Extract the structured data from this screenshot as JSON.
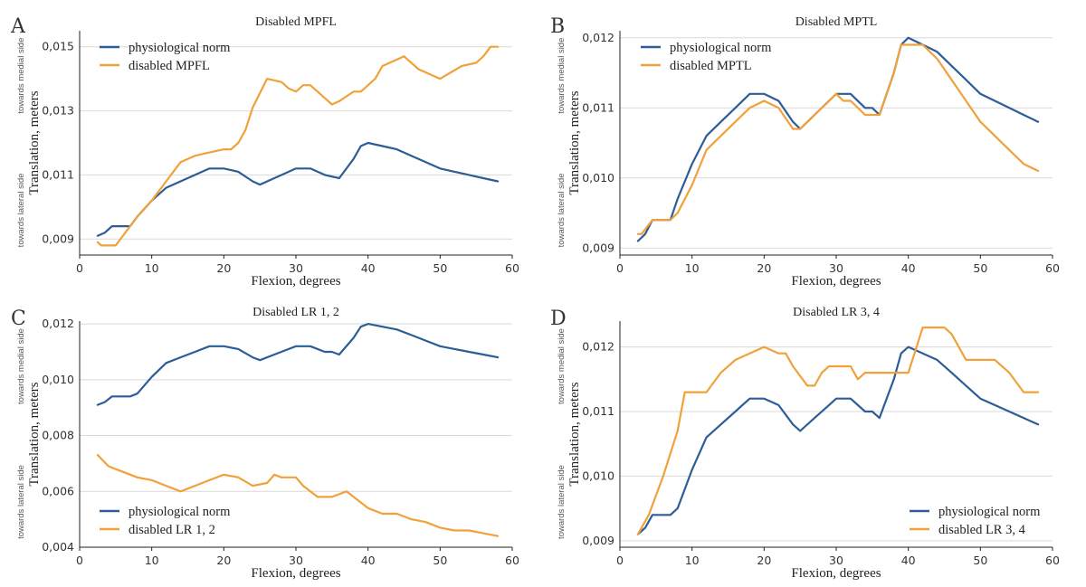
{
  "figure": {
    "x_label": "Flexion, degrees",
    "y_label": "Translation, meters",
    "side_upper": "towards medial side",
    "side_lower": "towards lateral side"
  },
  "colors": {
    "norm": "#2c5d96",
    "disabled": "#f0a13a"
  },
  "chart_data": [
    {
      "letter": "A",
      "type": "line",
      "title": "Disabled MPFL",
      "xlabel": "Flexion, degrees",
      "ylabel": "Translation, meters",
      "xlim": [
        0,
        60
      ],
      "ylim": [
        0.0085,
        0.0155
      ],
      "xticks": [
        0,
        10,
        20,
        30,
        40,
        50,
        60
      ],
      "yticks": [
        0.009,
        0.011,
        0.013,
        0.015
      ],
      "ytick_labels": [
        "0,009",
        "0,011",
        "0,013",
        "0,015"
      ],
      "grid": true,
      "legend_position": "top-left",
      "series": [
        {
          "name": "physiological norm",
          "color": "#2c5d96",
          "x": [
            2.5,
            3.5,
            4.5,
            6,
            7,
            8,
            10,
            12,
            14,
            16,
            18,
            20,
            22,
            24,
            25,
            27,
            29,
            30,
            31,
            32,
            34,
            36,
            38,
            39,
            40,
            42,
            44,
            46,
            48,
            50,
            52,
            54,
            56,
            58
          ],
          "y": [
            0.0091,
            0.0092,
            0.0094,
            0.0094,
            0.0094,
            0.0097,
            0.0102,
            0.0106,
            0.0108,
            0.011,
            0.0112,
            0.0112,
            0.0111,
            0.0108,
            0.0107,
            0.0109,
            0.0111,
            0.0112,
            0.0112,
            0.0112,
            0.011,
            0.0109,
            0.0115,
            0.0119,
            0.012,
            0.0119,
            0.0118,
            0.0116,
            0.0114,
            0.0112,
            0.0111,
            0.011,
            0.0109,
            0.0108
          ]
        },
        {
          "name": "disabled MPFL",
          "color": "#f0a13a",
          "x": [
            2.5,
            3,
            5,
            7,
            8,
            10,
            12,
            14,
            16,
            18,
            20,
            21,
            22,
            23,
            24,
            26,
            28,
            29,
            30,
            31,
            32,
            34,
            35,
            36,
            38,
            39,
            40,
            41,
            42,
            44,
            45,
            47,
            50,
            53,
            55,
            56,
            57,
            58
          ],
          "y": [
            0.0089,
            0.0088,
            0.0088,
            0.0094,
            0.0097,
            0.0102,
            0.0108,
            0.0114,
            0.0116,
            0.0117,
            0.0118,
            0.0118,
            0.012,
            0.0124,
            0.0131,
            0.014,
            0.0139,
            0.0137,
            0.0136,
            0.0138,
            0.0138,
            0.0134,
            0.0132,
            0.0133,
            0.0136,
            0.0136,
            0.0138,
            0.014,
            0.0144,
            0.0146,
            0.0147,
            0.0143,
            0.014,
            0.0144,
            0.0145,
            0.0147,
            0.015,
            0.015
          ]
        }
      ]
    },
    {
      "letter": "B",
      "type": "line",
      "title": "Disabled MPTL",
      "xlabel": "Flexion, degrees",
      "ylabel": "Translation, meters",
      "xlim": [
        0,
        60
      ],
      "ylim": [
        0.0089,
        0.0121
      ],
      "xticks": [
        0,
        10,
        20,
        30,
        40,
        50,
        60
      ],
      "yticks": [
        0.009,
        0.01,
        0.011,
        0.012
      ],
      "ytick_labels": [
        "0,009",
        "0,010",
        "0,011",
        "0,012"
      ],
      "grid": true,
      "legend_position": "top-left",
      "series": [
        {
          "name": "physiological norm",
          "color": "#2c5d96",
          "x": [
            2.5,
            3.5,
            4.5,
            6,
            7,
            8,
            10,
            12,
            14,
            16,
            18,
            20,
            22,
            24,
            25,
            27,
            29,
            30,
            31,
            32,
            34,
            35,
            36,
            38,
            39,
            40,
            42,
            44,
            46,
            48,
            50,
            52,
            54,
            56,
            58
          ],
          "y": [
            0.0091,
            0.0092,
            0.0094,
            0.0094,
            0.0094,
            0.0097,
            0.0102,
            0.0106,
            0.0108,
            0.011,
            0.0112,
            0.0112,
            0.0111,
            0.0108,
            0.0107,
            0.0109,
            0.0111,
            0.0112,
            0.0112,
            0.0112,
            0.011,
            0.011,
            0.0109,
            0.0115,
            0.0119,
            0.012,
            0.0119,
            0.0118,
            0.0116,
            0.0114,
            0.0112,
            0.0111,
            0.011,
            0.0109,
            0.0108
          ]
        },
        {
          "name": "disabled MPTL",
          "color": "#f0a13a",
          "x": [
            2.5,
            3,
            4.5,
            6,
            7,
            8,
            10,
            12,
            14,
            16,
            18,
            20,
            22,
            24,
            25,
            27,
            29,
            30,
            31,
            32,
            34,
            35,
            36,
            38,
            39,
            40,
            42,
            44,
            46,
            48,
            50,
            52,
            54,
            56,
            58
          ],
          "y": [
            0.0092,
            0.0092,
            0.0094,
            0.0094,
            0.0094,
            0.0095,
            0.0099,
            0.0104,
            0.0106,
            0.0108,
            0.011,
            0.0111,
            0.011,
            0.0107,
            0.0107,
            0.0109,
            0.0111,
            0.0112,
            0.0111,
            0.0111,
            0.0109,
            0.0109,
            0.0109,
            0.0115,
            0.0119,
            0.0119,
            0.0119,
            0.0117,
            0.0114,
            0.0111,
            0.0108,
            0.0106,
            0.0104,
            0.0102,
            0.0101
          ]
        }
      ]
    },
    {
      "letter": "C",
      "type": "line",
      "title": "Disabled LR 1, 2",
      "xlabel": "Flexion, degrees",
      "ylabel": "Translation, meters",
      "xlim": [
        0,
        60
      ],
      "ylim": [
        0.004,
        0.0121
      ],
      "xticks": [
        0,
        10,
        20,
        30,
        40,
        50,
        60
      ],
      "yticks": [
        0.004,
        0.006,
        0.008,
        0.01,
        0.012
      ],
      "ytick_labels": [
        "0,004",
        "0,006",
        "0,008",
        "0,010",
        "0,012"
      ],
      "grid": true,
      "legend_position": "bottom-left",
      "series": [
        {
          "name": "physiological norm",
          "color": "#2c5d96",
          "x": [
            2.5,
            3.5,
            4.5,
            6,
            7,
            8,
            10,
            12,
            14,
            16,
            18,
            20,
            22,
            24,
            25,
            27,
            29,
            30,
            31,
            32,
            34,
            35,
            36,
            38,
            39,
            40,
            42,
            44,
            46,
            48,
            50,
            52,
            54,
            56,
            58
          ],
          "y": [
            0.0091,
            0.0092,
            0.0094,
            0.0094,
            0.0094,
            0.0095,
            0.0101,
            0.0106,
            0.0108,
            0.011,
            0.0112,
            0.0112,
            0.0111,
            0.0108,
            0.0107,
            0.0109,
            0.0111,
            0.0112,
            0.0112,
            0.0112,
            0.011,
            0.011,
            0.0109,
            0.0115,
            0.0119,
            0.012,
            0.0119,
            0.0118,
            0.0116,
            0.0114,
            0.0112,
            0.0111,
            0.011,
            0.0109,
            0.0108
          ]
        },
        {
          "name": "disabled LR 1, 2",
          "color": "#f0a13a",
          "x": [
            2.5,
            4,
            6,
            8,
            10,
            12,
            14,
            16,
            18,
            20,
            22,
            24,
            26,
            27,
            28,
            29,
            30,
            31,
            33,
            35,
            37,
            38,
            40,
            42,
            44,
            46,
            48,
            50,
            52,
            54,
            56,
            58
          ],
          "y": [
            0.0073,
            0.0069,
            0.0067,
            0.0065,
            0.0064,
            0.0062,
            0.006,
            0.0062,
            0.0064,
            0.0066,
            0.0065,
            0.0062,
            0.0063,
            0.0066,
            0.0065,
            0.0065,
            0.0065,
            0.0062,
            0.0058,
            0.0058,
            0.006,
            0.0058,
            0.0054,
            0.0052,
            0.0052,
            0.005,
            0.0049,
            0.0047,
            0.0046,
            0.0046,
            0.0045,
            0.0044
          ]
        }
      ]
    },
    {
      "letter": "D",
      "type": "line",
      "title": "Disabled LR 3, 4",
      "xlabel": "Flexion, degrees",
      "ylabel": "Translation, meters",
      "xlim": [
        0,
        60
      ],
      "ylim": [
        0.0089,
        0.0124
      ],
      "xticks": [
        0,
        10,
        20,
        30,
        40,
        50,
        60
      ],
      "yticks": [
        0.009,
        0.01,
        0.011,
        0.012
      ],
      "ytick_labels": [
        "0,009",
        "0,010",
        "0,011",
        "0,012"
      ],
      "grid": true,
      "legend_position": "bottom-right",
      "series": [
        {
          "name": "physiological norm",
          "color": "#2c5d96",
          "x": [
            2.5,
            3.5,
            4.5,
            6,
            7,
            8,
            10,
            12,
            14,
            16,
            18,
            20,
            22,
            24,
            25,
            27,
            29,
            30,
            31,
            32,
            34,
            35,
            36,
            38,
            39,
            40,
            42,
            44,
            46,
            48,
            50,
            52,
            54,
            56,
            58
          ],
          "y": [
            0.0091,
            0.0092,
            0.0094,
            0.0094,
            0.0094,
            0.0095,
            0.0101,
            0.0106,
            0.0108,
            0.011,
            0.0112,
            0.0112,
            0.0111,
            0.0108,
            0.0107,
            0.0109,
            0.0111,
            0.0112,
            0.0112,
            0.0112,
            0.011,
            0.011,
            0.0109,
            0.0115,
            0.0119,
            0.012,
            0.0119,
            0.0118,
            0.0116,
            0.0114,
            0.0112,
            0.0111,
            0.011,
            0.0109,
            0.0108
          ]
        },
        {
          "name": "disabled LR 3, 4",
          "color": "#f0a13a",
          "x": [
            2.5,
            4,
            6,
            8,
            9,
            11,
            12,
            14,
            16,
            18,
            20,
            22,
            23,
            24,
            26,
            27,
            28,
            29,
            30,
            32,
            33,
            34,
            36,
            38,
            39,
            40,
            42,
            43,
            44,
            45,
            46,
            48,
            50,
            52,
            54,
            56,
            58
          ],
          "y": [
            0.0091,
            0.0094,
            0.01,
            0.0107,
            0.0113,
            0.0113,
            0.0113,
            0.0116,
            0.0118,
            0.0119,
            0.012,
            0.0119,
            0.0119,
            0.0117,
            0.0114,
            0.0114,
            0.0116,
            0.0117,
            0.0117,
            0.0117,
            0.0115,
            0.0116,
            0.0116,
            0.0116,
            0.0116,
            0.0116,
            0.0123,
            0.0123,
            0.0123,
            0.0123,
            0.0122,
            0.0118,
            0.0118,
            0.0118,
            0.0116,
            0.0113,
            0.0113
          ]
        }
      ]
    }
  ]
}
